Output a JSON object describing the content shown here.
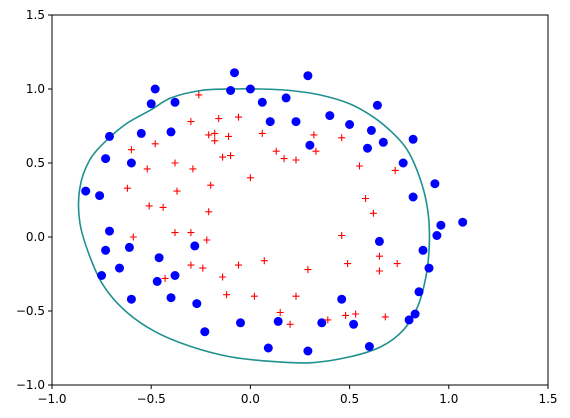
{
  "chart_data": {
    "type": "scatter",
    "title": "",
    "xlabel": "",
    "ylabel": "",
    "xlim": [
      -1.0,
      1.5
    ],
    "ylim": [
      -1.0,
      1.5
    ],
    "xticks": [
      -1.0,
      -0.5,
      0.0,
      0.5,
      1.0,
      1.5
    ],
    "yticks": [
      -1.0,
      -0.5,
      0.0,
      0.5,
      1.0,
      1.5
    ],
    "xtick_labels": [
      "−1.0",
      "−0.5",
      "0.0",
      "0.5",
      "1.0",
      "1.5"
    ],
    "ytick_labels": [
      "−1.0",
      "−0.5",
      "0.0",
      "0.5",
      "1.0",
      "1.5"
    ],
    "grid": false,
    "legend": null,
    "series": [
      {
        "marker": "circle",
        "color": "#0000ff",
        "points": [
          [
            -0.83,
            0.31
          ],
          [
            -0.76,
            0.28
          ],
          [
            -0.73,
            0.53
          ],
          [
            -0.71,
            0.68
          ],
          [
            -0.71,
            0.04
          ],
          [
            -0.73,
            -0.09
          ],
          [
            -0.75,
            -0.26
          ],
          [
            -0.66,
            -0.21
          ],
          [
            -0.61,
            -0.07
          ],
          [
            -0.6,
            -0.42
          ],
          [
            -0.6,
            0.5
          ],
          [
            -0.55,
            0.7
          ],
          [
            -0.5,
            0.9
          ],
          [
            -0.48,
            1.0
          ],
          [
            -0.47,
            -0.3
          ],
          [
            -0.46,
            -0.14
          ],
          [
            -0.4,
            0.71
          ],
          [
            -0.38,
            0.91
          ],
          [
            -0.38,
            -0.26
          ],
          [
            -0.4,
            -0.41
          ],
          [
            -0.28,
            -0.06
          ],
          [
            -0.27,
            -0.45
          ],
          [
            -0.23,
            -0.64
          ],
          [
            -0.1,
            0.99
          ],
          [
            -0.08,
            1.11
          ],
          [
            -0.05,
            -0.58
          ],
          [
            0.0,
            1.0
          ],
          [
            0.06,
            0.91
          ],
          [
            0.1,
            0.78
          ],
          [
            0.09,
            -0.75
          ],
          [
            0.14,
            -0.57
          ],
          [
            0.18,
            0.94
          ],
          [
            0.23,
            0.78
          ],
          [
            0.29,
            1.09
          ],
          [
            0.3,
            0.62
          ],
          [
            0.29,
            -0.77
          ],
          [
            0.36,
            -0.58
          ],
          [
            0.4,
            0.82
          ],
          [
            0.46,
            -0.42
          ],
          [
            0.5,
            0.76
          ],
          [
            0.52,
            -0.59
          ],
          [
            0.59,
            0.6
          ],
          [
            0.6,
            -0.74
          ],
          [
            0.61,
            0.72
          ],
          [
            0.64,
            0.89
          ],
          [
            0.65,
            -0.03
          ],
          [
            0.67,
            0.64
          ],
          [
            0.77,
            0.5
          ],
          [
            0.8,
            -0.56
          ],
          [
            0.82,
            0.27
          ],
          [
            0.82,
            0.66
          ],
          [
            0.83,
            -0.52
          ],
          [
            0.85,
            -0.37
          ],
          [
            0.87,
            -0.09
          ],
          [
            0.9,
            -0.21
          ],
          [
            0.93,
            0.36
          ],
          [
            0.94,
            0.01
          ],
          [
            0.96,
            0.08
          ],
          [
            1.07,
            0.1
          ]
        ]
      },
      {
        "marker": "plus",
        "color": "#ff0000",
        "points": [
          [
            -0.6,
            0.59
          ],
          [
            -0.62,
            0.33
          ],
          [
            -0.59,
            0.0
          ],
          [
            -0.52,
            0.46
          ],
          [
            -0.51,
            0.21
          ],
          [
            -0.48,
            0.63
          ],
          [
            -0.44,
            0.2
          ],
          [
            -0.43,
            -0.28
          ],
          [
            -0.38,
            0.5
          ],
          [
            -0.37,
            0.31
          ],
          [
            -0.38,
            0.03
          ],
          [
            -0.3,
            0.78
          ],
          [
            -0.29,
            0.46
          ],
          [
            -0.3,
            0.03
          ],
          [
            -0.3,
            -0.19
          ],
          [
            -0.26,
            0.96
          ],
          [
            -0.24,
            -0.21
          ],
          [
            -0.21,
            0.69
          ],
          [
            -0.2,
            0.35
          ],
          [
            -0.21,
            0.17
          ],
          [
            -0.22,
            -0.02
          ],
          [
            -0.18,
            0.7
          ],
          [
            -0.18,
            0.65
          ],
          [
            -0.16,
            0.8
          ],
          [
            -0.14,
            0.54
          ],
          [
            -0.14,
            -0.27
          ],
          [
            -0.11,
            0.68
          ],
          [
            -0.1,
            0.55
          ],
          [
            -0.12,
            -0.39
          ],
          [
            -0.06,
            0.81
          ],
          [
            -0.06,
            -0.19
          ],
          [
            0.0,
            0.4
          ],
          [
            0.02,
            -0.4
          ],
          [
            0.06,
            0.7
          ],
          [
            0.07,
            -0.16
          ],
          [
            0.13,
            0.58
          ],
          [
            0.15,
            -0.51
          ],
          [
            0.17,
            0.53
          ],
          [
            0.2,
            -0.59
          ],
          [
            0.23,
            0.52
          ],
          [
            0.23,
            -0.4
          ],
          [
            0.29,
            -0.22
          ],
          [
            0.32,
            0.69
          ],
          [
            0.33,
            0.58
          ],
          [
            0.39,
            -0.56
          ],
          [
            0.46,
            0.67
          ],
          [
            0.46,
            0.01
          ],
          [
            0.48,
            -0.53
          ],
          [
            0.49,
            -0.18
          ],
          [
            0.53,
            -0.52
          ],
          [
            0.55,
            0.48
          ],
          [
            0.58,
            0.26
          ],
          [
            0.62,
            0.16
          ],
          [
            0.65,
            -0.13
          ],
          [
            0.65,
            -0.23
          ],
          [
            0.68,
            -0.54
          ],
          [
            0.73,
            0.45
          ],
          [
            0.74,
            -0.18
          ]
        ]
      }
    ],
    "decision_boundary": {
      "color": "#1f9090",
      "points": [
        [
          -0.5,
          0.86
        ],
        [
          -0.4,
          0.94
        ],
        [
          -0.25,
          0.99
        ],
        [
          -0.1,
          1.0
        ],
        [
          0.05,
          1.0
        ],
        [
          0.2,
          0.99
        ],
        [
          0.35,
          0.96
        ],
        [
          0.5,
          0.9
        ],
        [
          0.62,
          0.81
        ],
        [
          0.72,
          0.7
        ],
        [
          0.79,
          0.59
        ],
        [
          0.84,
          0.45
        ],
        [
          0.88,
          0.28
        ],
        [
          0.9,
          0.1
        ],
        [
          0.9,
          -0.1
        ],
        [
          0.88,
          -0.3
        ],
        [
          0.84,
          -0.48
        ],
        [
          0.77,
          -0.63
        ],
        [
          0.66,
          -0.74
        ],
        [
          0.5,
          -0.81
        ],
        [
          0.3,
          -0.85
        ],
        [
          0.1,
          -0.84
        ],
        [
          -0.1,
          -0.81
        ],
        [
          -0.3,
          -0.74
        ],
        [
          -0.48,
          -0.64
        ],
        [
          -0.63,
          -0.5
        ],
        [
          -0.74,
          -0.33
        ],
        [
          -0.81,
          -0.13
        ],
        [
          -0.86,
          0.1
        ],
        [
          -0.86,
          0.33
        ],
        [
          -0.81,
          0.52
        ],
        [
          -0.72,
          0.66
        ],
        [
          -0.62,
          0.77
        ],
        [
          -0.5,
          0.86
        ]
      ]
    }
  }
}
